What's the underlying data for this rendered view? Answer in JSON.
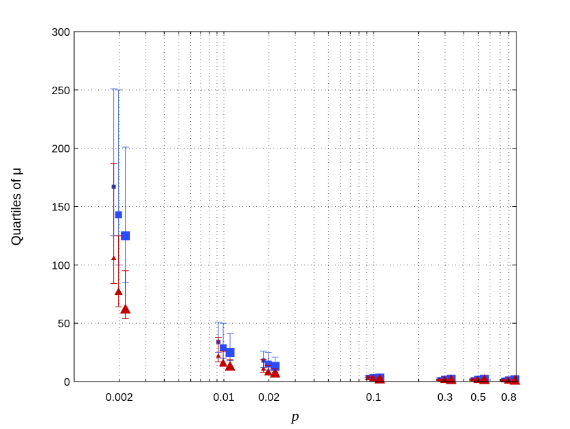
{
  "chart_data": {
    "type": "scatter",
    "title": "",
    "xlabel": "p",
    "ylabel": "Quartiles of μ",
    "x_scale": "log",
    "xlim": [
      0.001,
      0.9
    ],
    "ylim": [
      0,
      300
    ],
    "grid": true,
    "x_ticks": [
      0.002,
      0.01,
      0.02,
      0.1,
      0.3,
      0.5,
      0.8
    ],
    "x_tick_labels": [
      "0.002",
      "0.01",
      "0.02",
      "0.1",
      "0.3",
      "0.5",
      "0.8"
    ],
    "y_ticks": [
      0,
      50,
      100,
      150,
      200,
      250,
      300
    ],
    "y_tick_labels": [
      "0",
      "50",
      "100",
      "150",
      "200",
      "250",
      "300"
    ],
    "colors": {
      "blue": "#2a4bff",
      "red": "#bf0000",
      "dark_blue": "#4040a0"
    },
    "series": [
      {
        "marker": "square",
        "size": "small",
        "color": "#3a3aa8",
        "whisker_color": "#4a6ae0",
        "points": [
          {
            "x": 0.002,
            "median": 167,
            "lower": 125,
            "upper": 251
          },
          {
            "x": 0.01,
            "median": 34,
            "lower": 25,
            "upper": 51
          },
          {
            "x": 0.02,
            "median": 18,
            "lower": 12,
            "upper": 26
          },
          {
            "x": 0.1,
            "median": 4,
            "lower": 3,
            "upper": 5
          },
          {
            "x": 0.3,
            "median": 2,
            "lower": 1.5,
            "upper": 3
          },
          {
            "x": 0.5,
            "median": 2,
            "lower": 1.5,
            "upper": 2.5
          },
          {
            "x": 0.8,
            "median": 1.5,
            "lower": 1,
            "upper": 2
          }
        ]
      },
      {
        "marker": "square",
        "size": "medium",
        "color": "#2a4bff",
        "whisker_color": "#4a6ae0",
        "points": [
          {
            "x": 0.002,
            "median": 143,
            "lower": 100,
            "upper": 250
          },
          {
            "x": 0.01,
            "median": 29,
            "lower": 20,
            "upper": 50
          },
          {
            "x": 0.02,
            "median": 15,
            "lower": 10,
            "upper": 25
          },
          {
            "x": 0.1,
            "median": 3.5,
            "lower": 2.5,
            "upper": 5
          },
          {
            "x": 0.3,
            "median": 2,
            "lower": 1.5,
            "upper": 3
          },
          {
            "x": 0.5,
            "median": 2,
            "lower": 1.5,
            "upper": 2.5
          },
          {
            "x": 0.8,
            "median": 1.5,
            "lower": 1,
            "upper": 2
          }
        ]
      },
      {
        "marker": "square",
        "size": "large",
        "color": "#2a4bff",
        "whisker_color": "#4a6ae0",
        "points": [
          {
            "x": 0.002,
            "median": 125,
            "lower": 85,
            "upper": 201
          },
          {
            "x": 0.01,
            "median": 25,
            "lower": 18,
            "upper": 41
          },
          {
            "x": 0.02,
            "median": 13,
            "lower": 8,
            "upper": 21
          },
          {
            "x": 0.1,
            "median": 3,
            "lower": 2,
            "upper": 5
          },
          {
            "x": 0.3,
            "median": 2,
            "lower": 1.5,
            "upper": 3
          },
          {
            "x": 0.5,
            "median": 2,
            "lower": 1.5,
            "upper": 2.5
          },
          {
            "x": 0.8,
            "median": 1.5,
            "lower": 1,
            "upper": 2
          }
        ]
      },
      {
        "marker": "triangle",
        "size": "small",
        "color": "#bf0000",
        "whisker_color": "#bf0000",
        "points": [
          {
            "x": 0.002,
            "median": 106,
            "lower": 84,
            "upper": 187
          },
          {
            "x": 0.01,
            "median": 22,
            "lower": 17,
            "upper": 38
          },
          {
            "x": 0.02,
            "median": 11,
            "lower": 8,
            "upper": 19
          },
          {
            "x": 0.1,
            "median": 3,
            "lower": 2,
            "upper": 4
          },
          {
            "x": 0.3,
            "median": 1.5,
            "lower": 1,
            "upper": 2
          },
          {
            "x": 0.5,
            "median": 1.5,
            "lower": 1,
            "upper": 2
          },
          {
            "x": 0.8,
            "median": 1,
            "lower": 0.5,
            "upper": 1.5
          }
        ]
      },
      {
        "marker": "triangle",
        "size": "medium",
        "color": "#bf0000",
        "whisker_color": "#bf0000",
        "points": [
          {
            "x": 0.002,
            "median": 77,
            "lower": 64,
            "upper": 125
          },
          {
            "x": 0.01,
            "median": 16,
            "lower": 13,
            "upper": 26
          },
          {
            "x": 0.02,
            "median": 8,
            "lower": 6,
            "upper": 14
          },
          {
            "x": 0.1,
            "median": 2.5,
            "lower": 2,
            "upper": 4
          },
          {
            "x": 0.3,
            "median": 1.5,
            "lower": 1,
            "upper": 2
          },
          {
            "x": 0.5,
            "median": 1.5,
            "lower": 1,
            "upper": 2
          },
          {
            "x": 0.8,
            "median": 1,
            "lower": 0.5,
            "upper": 1.5
          }
        ]
      },
      {
        "marker": "triangle",
        "size": "large",
        "color": "#bf0000",
        "whisker_color": "#bf0000",
        "points": [
          {
            "x": 0.002,
            "median": 62,
            "lower": 54,
            "upper": 95
          },
          {
            "x": 0.01,
            "median": 13,
            "lower": 11,
            "upper": 19
          },
          {
            "x": 0.02,
            "median": 7,
            "lower": 5,
            "upper": 11
          },
          {
            "x": 0.1,
            "median": 2,
            "lower": 1.5,
            "upper": 3
          },
          {
            "x": 0.3,
            "median": 1.5,
            "lower": 1,
            "upper": 2
          },
          {
            "x": 0.5,
            "median": 1.5,
            "lower": 1,
            "upper": 2
          },
          {
            "x": 0.8,
            "median": 1,
            "lower": 0.5,
            "upper": 1.5
          }
        ]
      }
    ]
  }
}
